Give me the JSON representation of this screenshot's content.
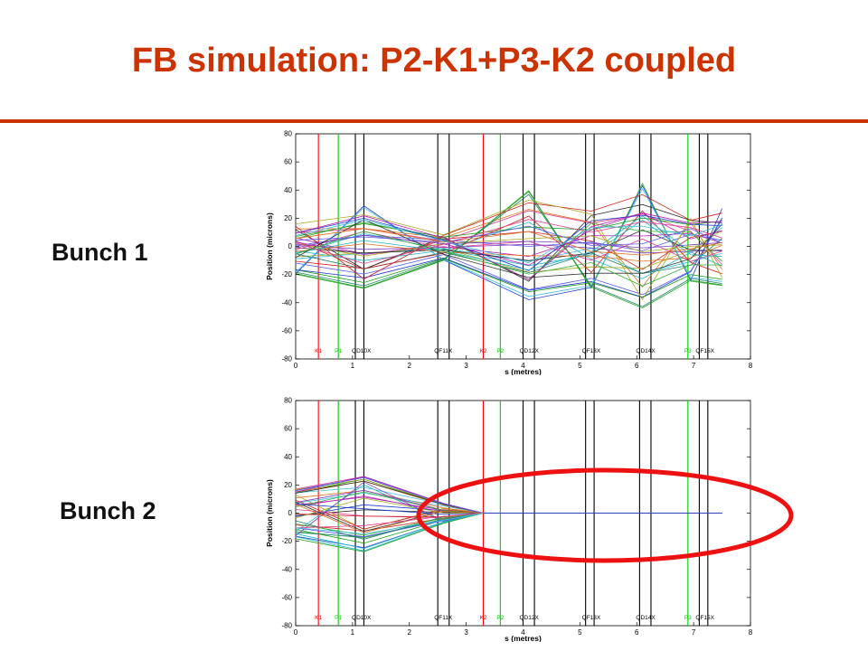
{
  "slide": {
    "title": "FB simulation: P2-K1+P3-K2 coupled",
    "bunch1_label": "Bunch 1",
    "bunch2_label": "Bunch 2"
  },
  "colors": {
    "title": "#cc3300",
    "kicker_line": "#ff0000",
    "bpm_line": "#00cc00",
    "quad_line": "#000000",
    "highlight_ellipse": "#ee1111"
  },
  "chart_data": [
    {
      "type": "line",
      "title": "",
      "xlabel": "s (metres)",
      "ylabel": "Position (microns)",
      "xlim": [
        0,
        8
      ],
      "ylim": [
        -80,
        80
      ],
      "xticks": [
        0,
        1,
        2,
        3,
        4,
        5,
        6,
        7,
        8
      ],
      "yticks": [
        -80,
        -60,
        -40,
        -20,
        0,
        20,
        40,
        60,
        80
      ],
      "markers": [
        {
          "label": "K1",
          "s": 0.4,
          "kind": "kicker"
        },
        {
          "label": "P1",
          "s": 0.75,
          "kind": "bpm"
        },
        {
          "label": "QD10X",
          "s": 1.05,
          "kind": "quad"
        },
        {
          "label": "",
          "s": 1.2,
          "kind": "quad"
        },
        {
          "label": "QF11X",
          "s": 2.5,
          "kind": "quad"
        },
        {
          "label": "",
          "s": 2.7,
          "kind": "quad"
        },
        {
          "label": "K2",
          "s": 3.3,
          "kind": "kicker"
        },
        {
          "label": "P2",
          "s": 3.6,
          "kind": "bpm"
        },
        {
          "label": "QD12X",
          "s": 4.0,
          "kind": "quad"
        },
        {
          "label": "",
          "s": 4.2,
          "kind": "quad"
        },
        {
          "label": "QF13X",
          "s": 5.1,
          "kind": "quad"
        },
        {
          "label": "",
          "s": 5.25,
          "kind": "quad"
        },
        {
          "label": "QD14X",
          "s": 6.05,
          "kind": "quad"
        },
        {
          "label": "",
          "s": 6.25,
          "kind": "quad"
        },
        {
          "label": "P3",
          "s": 6.9,
          "kind": "bpm"
        },
        {
          "label": "QF15X",
          "s": 7.1,
          "kind": "quad"
        },
        {
          "label": "",
          "s": 7.25,
          "kind": "quad"
        }
      ],
      "trajectory_knots_s": [
        0,
        1.2,
        2.6,
        4.1,
        5.2,
        6.1,
        6.95,
        7.5
      ],
      "trajectory_envelope": [
        20,
        30,
        10,
        40,
        30,
        45,
        25,
        28
      ],
      "n_trajectories": 40
    },
    {
      "type": "line",
      "title": "",
      "xlabel": "s (metres)",
      "ylabel": "Position (microns)",
      "xlim": [
        0,
        8
      ],
      "ylim": [
        -80,
        80
      ],
      "xticks": [
        0,
        1,
        2,
        3,
        4,
        5,
        6,
        7,
        8
      ],
      "yticks": [
        -80,
        -60,
        -40,
        -20,
        0,
        20,
        40,
        60,
        80
      ],
      "markers": [
        {
          "label": "K1",
          "s": 0.4,
          "kind": "kicker"
        },
        {
          "label": "P1",
          "s": 0.75,
          "kind": "bpm"
        },
        {
          "label": "QD10X",
          "s": 1.05,
          "kind": "quad"
        },
        {
          "label": "",
          "s": 1.2,
          "kind": "quad"
        },
        {
          "label": "QF11X",
          "s": 2.5,
          "kind": "quad"
        },
        {
          "label": "",
          "s": 2.7,
          "kind": "quad"
        },
        {
          "label": "K2",
          "s": 3.3,
          "kind": "kicker"
        },
        {
          "label": "P2",
          "s": 3.6,
          "kind": "bpm"
        },
        {
          "label": "QD12X",
          "s": 4.0,
          "kind": "quad"
        },
        {
          "label": "",
          "s": 4.2,
          "kind": "quad"
        },
        {
          "label": "QF13X",
          "s": 5.1,
          "kind": "quad"
        },
        {
          "label": "",
          "s": 5.25,
          "kind": "quad"
        },
        {
          "label": "QD14X",
          "s": 6.05,
          "kind": "quad"
        },
        {
          "label": "",
          "s": 6.25,
          "kind": "quad"
        },
        {
          "label": "P3",
          "s": 6.9,
          "kind": "bpm"
        },
        {
          "label": "QF15X",
          "s": 7.1,
          "kind": "quad"
        },
        {
          "label": "",
          "s": 7.25,
          "kind": "quad"
        }
      ],
      "trajectory_knots_s": [
        0,
        1.2,
        2.6,
        3.3,
        7.5
      ],
      "trajectory_envelope": [
        20,
        30,
        8,
        0,
        0
      ],
      "n_trajectories": 40,
      "converged_to_zero_after_s": 3.3
    }
  ]
}
